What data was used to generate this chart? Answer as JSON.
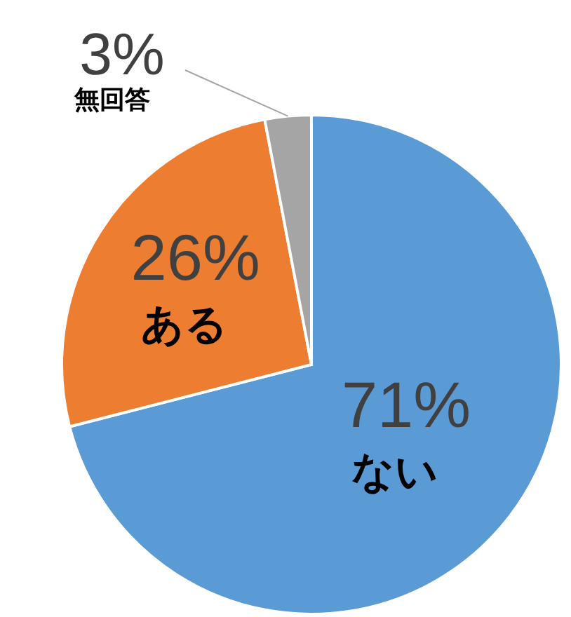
{
  "chart_data": {
    "type": "pie",
    "categories": [
      "ない",
      "ある",
      "無回答"
    ],
    "values": [
      71,
      26,
      3
    ],
    "colors": [
      "#5b9bd5",
      "#ed7d31",
      "#a5a5a5"
    ],
    "value_labels": [
      "71%",
      "26%",
      "3%"
    ]
  }
}
